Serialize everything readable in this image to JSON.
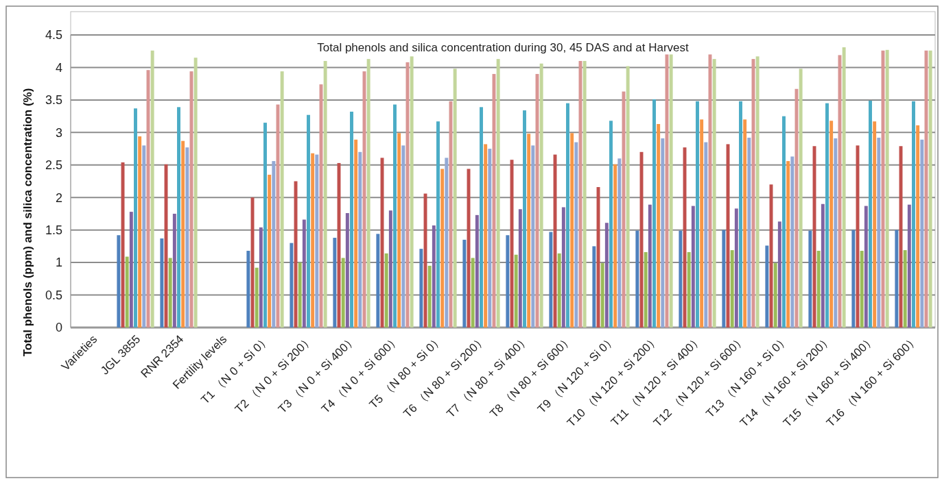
{
  "chart_data": {
    "type": "bar",
    "title": "Total phenols and silica concentration during 30, 45 DAS and at Harvest",
    "ylabel": "Total phenols (ppm) and silica concentration (%)",
    "categories": [
      "Varieties",
      "JGL 3855",
      "RNR 2354",
      "Fertility levels",
      "T1 （N 0 + Si 0）",
      "T2 （N 0 + Si 200）",
      "T3 （N 0 + Si 400）",
      "T4 （N 0 + Si 600）",
      "T5 （N 80 + Si 0）",
      "T6 （N 80 + Si 200）",
      "T7 （N 80 + Si 400）",
      "T8 （N 80 + Si 600）",
      "T9 （N 120 + Si 0）",
      "T10 （N 120 + Si 200）",
      "T11 （N 120 + Si 400）",
      "T12 （N 120 + Si 600）",
      "T13 （N 160 + Si 0）",
      "T14 （N 160 + Si 200）",
      "T15 （N 160 + Si 400）",
      "T16 （N 160 + Si 600）"
    ],
    "series": [
      {
        "color": "#4f81bd",
        "values": [
          null,
          1.42,
          1.37,
          null,
          1.18,
          1.3,
          1.38,
          1.44,
          1.21,
          1.35,
          1.42,
          1.47,
          1.25,
          1.49,
          1.49,
          1.5,
          1.26,
          1.49,
          1.5,
          1.5
        ]
      },
      {
        "color": "#c0504d",
        "values": [
          null,
          2.54,
          2.51,
          null,
          2.0,
          2.25,
          2.53,
          2.61,
          2.06,
          2.44,
          2.58,
          2.66,
          2.16,
          2.7,
          2.77,
          2.82,
          2.2,
          2.79,
          2.8,
          2.79
        ]
      },
      {
        "color": "#9bbb59",
        "values": [
          null,
          1.09,
          1.07,
          null,
          0.92,
          1.0,
          1.07,
          1.14,
          0.95,
          1.07,
          1.12,
          1.14,
          0.99,
          1.16,
          1.16,
          1.19,
          0.99,
          1.18,
          1.18,
          1.19
        ]
      },
      {
        "color": "#8064a2",
        "values": [
          null,
          1.78,
          1.75,
          null,
          1.54,
          1.66,
          1.76,
          1.8,
          1.57,
          1.73,
          1.82,
          1.85,
          1.61,
          1.89,
          1.87,
          1.83,
          1.63,
          1.9,
          1.87,
          1.89
        ]
      },
      {
        "color": "#4bacc6",
        "values": [
          null,
          3.37,
          3.39,
          null,
          3.15,
          3.27,
          3.32,
          3.43,
          3.17,
          3.39,
          3.34,
          3.45,
          3.18,
          3.51,
          3.48,
          3.48,
          3.25,
          3.45,
          3.49,
          3.48
        ]
      },
      {
        "color": "#f79646",
        "values": [
          null,
          2.94,
          2.87,
          null,
          2.35,
          2.68,
          2.89,
          2.99,
          2.44,
          2.82,
          2.98,
          2.99,
          2.51,
          3.13,
          3.2,
          3.2,
          2.56,
          3.18,
          3.17,
          3.11
        ]
      },
      {
        "color": "#93a9d5",
        "values": [
          null,
          2.8,
          2.77,
          null,
          2.56,
          2.66,
          2.7,
          2.8,
          2.61,
          2.75,
          2.8,
          2.85,
          2.6,
          2.91,
          2.85,
          2.92,
          2.63,
          2.91,
          2.92,
          2.89
        ]
      },
      {
        "color": "#d99694",
        "values": [
          null,
          3.96,
          3.94,
          null,
          3.43,
          3.74,
          3.94,
          4.08,
          3.48,
          3.9,
          3.9,
          4.1,
          3.63,
          4.2,
          4.2,
          4.13,
          3.67,
          4.19,
          4.26,
          4.26
        ]
      },
      {
        "color": "#c3d69b",
        "values": [
          null,
          4.26,
          4.15,
          null,
          3.94,
          4.1,
          4.13,
          4.17,
          3.98,
          4.13,
          4.06,
          4.1,
          4.02,
          4.2,
          4.13,
          4.17,
          3.98,
          4.31,
          4.27,
          4.26
        ]
      }
    ],
    "ylim": [
      0,
      4.5
    ],
    "yticks": [
      0,
      0.5,
      1,
      1.5,
      2,
      2.5,
      3,
      3.5,
      4,
      4.5
    ],
    "grid": "y"
  }
}
